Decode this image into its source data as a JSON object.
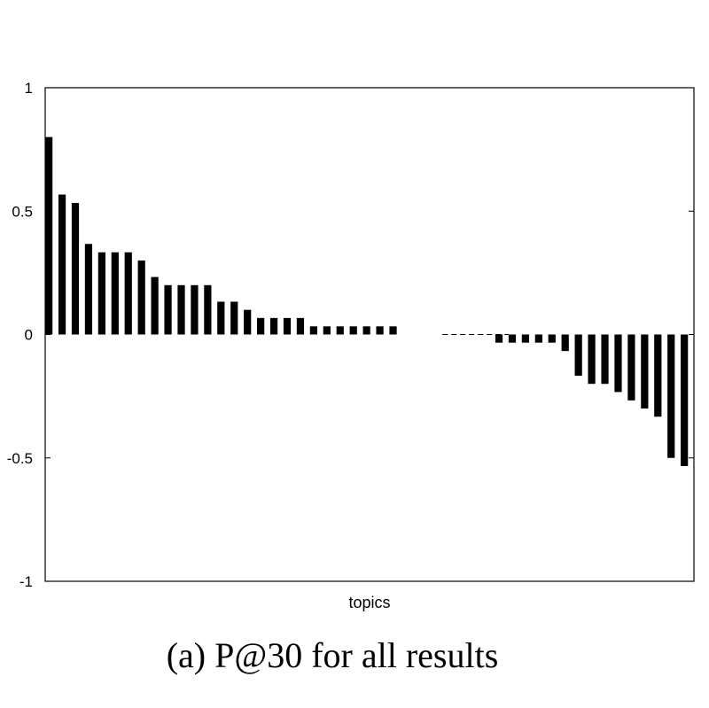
{
  "caption": "(a)  P@30 for all results",
  "colors": {
    "bar": "#000000",
    "axis": "#000000",
    "background": "#ffffff"
  },
  "chart_data": {
    "type": "bar",
    "title": "",
    "xlabel": "topics",
    "ylabel": "",
    "ylim": [
      -1,
      1
    ],
    "yticks": [
      1,
      0.5,
      0,
      -0.5,
      -1
    ],
    "ytick_labels": [
      "1",
      "0.5",
      "0",
      "-0.5",
      "-1"
    ],
    "grid": false,
    "legend": "none",
    "zero_line_dashed_between": [
      30,
      35
    ],
    "values": [
      0.8,
      0.567,
      0.533,
      0.367,
      0.333,
      0.333,
      0.333,
      0.3,
      0.233,
      0.2,
      0.2,
      0.2,
      0.2,
      0.133,
      0.133,
      0.1,
      0.067,
      0.067,
      0.067,
      0.067,
      0.033,
      0.033,
      0.033,
      0.033,
      0.033,
      0.033,
      0.033,
      0.0,
      0.0,
      0.0,
      0.0,
      0.0,
      0.0,
      0.0,
      -0.033,
      -0.033,
      -0.033,
      -0.033,
      -0.033,
      -0.067,
      -0.167,
      -0.2,
      -0.2,
      -0.233,
      -0.267,
      -0.3,
      -0.333,
      -0.5,
      -0.533
    ]
  }
}
